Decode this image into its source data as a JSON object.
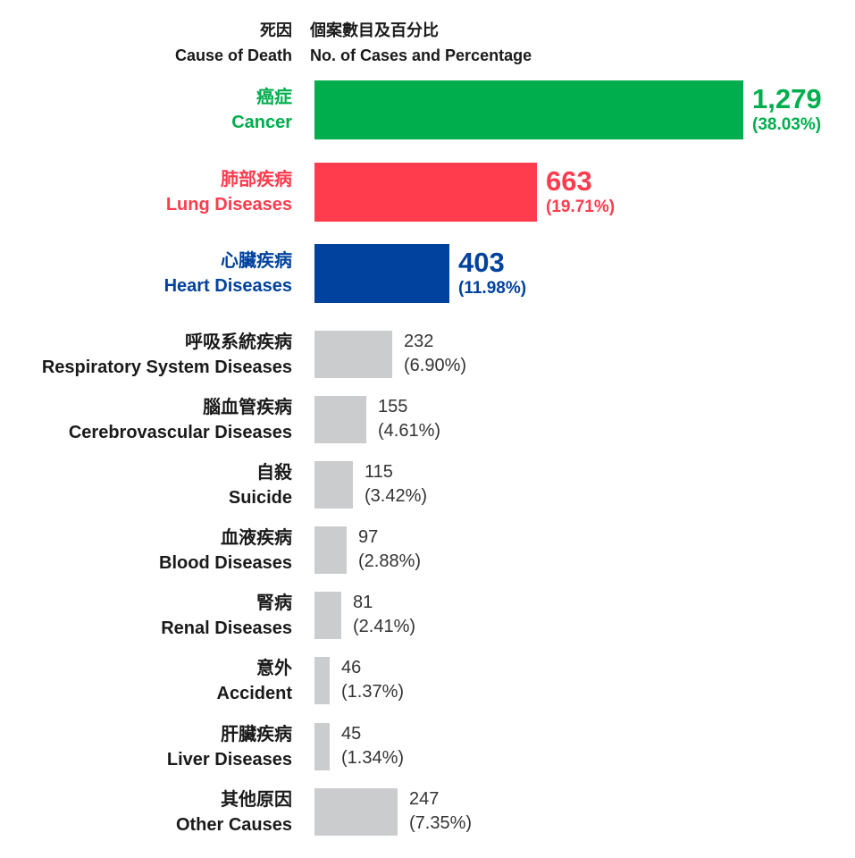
{
  "header": {
    "cause_zh": "死因",
    "cause_en": "Cause of Death",
    "cases_zh": "個案數目及百分比",
    "cases_en": "No. of Cases and Percentage"
  },
  "chart_data": {
    "type": "bar",
    "orientation": "horizontal",
    "categories_zh": [
      "癌症",
      "肺部疾病",
      "心臟疾病",
      "呼吸系統疾病",
      "腦血管疾病",
      "自殺",
      "血液疾病",
      "腎病",
      "意外",
      "肝臟疾病",
      "其他原因"
    ],
    "categories": [
      "Cancer",
      "Lung Diseases",
      "Heart Diseases",
      "Respiratory System Diseases",
      "Cerebrovascular Diseases",
      "Suicide",
      "Blood Diseases",
      "Renal Diseases",
      "Accident",
      "Liver Diseases",
      "Other Causes"
    ],
    "values": [
      1279,
      663,
      403,
      232,
      155,
      115,
      97,
      81,
      46,
      45,
      247
    ],
    "value_labels": [
      "1,279",
      "663",
      "403",
      "232",
      "155",
      "115",
      "97",
      "81",
      "46",
      "45",
      "247"
    ],
    "percent_labels": [
      "(38.03%)",
      "(19.71%)",
      "(11.98%)",
      "(6.90%)",
      "(4.61%)",
      "(3.42%)",
      "(2.88%)",
      "(2.41%)",
      "(1.37%)",
      "(1.34%)",
      "(7.35%)"
    ],
    "colors": [
      "#00AE4D",
      "#FF3B4E",
      "#00429D",
      "#CBCCCE",
      "#CBCCCE",
      "#CBCCCE",
      "#CBCCCE",
      "#CBCCCE",
      "#CBCCCE",
      "#CBCCCE",
      "#CBCCCE"
    ],
    "grid": false,
    "legend": "none"
  }
}
